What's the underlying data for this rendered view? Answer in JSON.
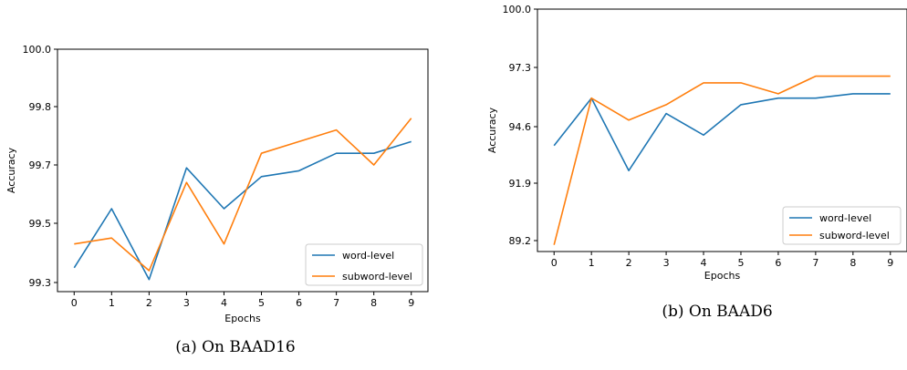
{
  "chart_data": [
    {
      "type": "line",
      "caption": "(a) On BAAD16",
      "xlabel": "Epochs",
      "ylabel": "Accuracy",
      "x": [
        0,
        1,
        2,
        3,
        4,
        5,
        6,
        7,
        8,
        9
      ],
      "x_ticks": [
        "0",
        "1",
        "2",
        "3",
        "4",
        "5",
        "6",
        "7",
        "8",
        "9"
      ],
      "y_ticks": [
        "99.3",
        "99.5",
        "99.7",
        "99.8",
        "100.0"
      ],
      "ylim": [
        99.3,
        100.0
      ],
      "grid": false,
      "legend_position": "lower-right",
      "series": [
        {
          "name": "word-level",
          "color": "#1f77b4",
          "values": [
            99.35,
            99.55,
            99.31,
            99.69,
            99.55,
            99.66,
            99.68,
            99.72,
            99.72,
            99.74
          ]
        },
        {
          "name": "subword-level",
          "color": "#ff7f0e",
          "values": [
            99.43,
            99.45,
            99.34,
            99.64,
            99.43,
            99.72,
            99.74,
            99.76,
            99.7,
            99.78
          ]
        }
      ]
    },
    {
      "type": "line",
      "caption": "(b) On BAAD6",
      "xlabel": "Epochs",
      "ylabel": "Accuracy",
      "x": [
        0,
        1,
        2,
        3,
        4,
        5,
        6,
        7,
        8,
        9
      ],
      "x_ticks": [
        "0",
        "1",
        "2",
        "3",
        "4",
        "5",
        "6",
        "7",
        "8",
        "9"
      ],
      "y_ticks": [
        "89.2",
        "91.9",
        "94.6",
        "97.3",
        "100.0"
      ],
      "ylim": [
        89.2,
        100.0
      ],
      "grid": false,
      "legend_position": "lower-right",
      "series": [
        {
          "name": "word-level",
          "color": "#1f77b4",
          "values": [
            93.7,
            95.9,
            92.5,
            95.2,
            94.2,
            95.6,
            95.9,
            95.9,
            96.1,
            96.1
          ]
        },
        {
          "name": "subword-level",
          "color": "#ff7f0e",
          "values": [
            89.0,
            95.9,
            94.9,
            95.6,
            96.6,
            96.6,
            96.1,
            96.9,
            96.9,
            96.9
          ]
        }
      ]
    }
  ]
}
